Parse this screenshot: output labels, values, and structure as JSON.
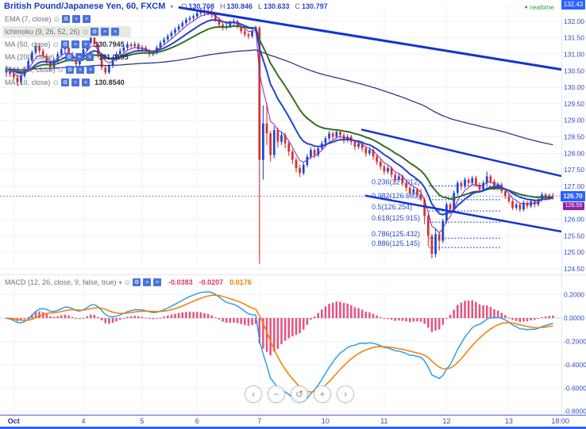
{
  "header": {
    "symbol_title": "British Pound/Japanese Yen, 60, FXCM",
    "ohlc": [
      {
        "k": "O",
        "v": "130.708"
      },
      {
        "k": "H",
        "v": "130.846"
      },
      {
        "k": "L",
        "v": "130.633"
      },
      {
        "k": "C",
        "v": "130.797"
      }
    ],
    "realtime": "realtime"
  },
  "icons": {
    "caret": "▾",
    "eye": "⊙",
    "gear": "⚙",
    "plus": "+",
    "close": "×",
    "dot": "●"
  },
  "legend": {
    "rows": [
      {
        "label": "EMA (7, close)",
        "value": ""
      },
      {
        "label": "Ichimoku (9, 26, 52, 26)",
        "value": ""
      },
      {
        "label": "MA (50, close)",
        "value": "130.7945"
      },
      {
        "label": "MA (200, close)",
        "value": "131.0195"
      },
      {
        "label": "EMA (90, close)",
        "value": ""
      },
      {
        "label": "MA (10, close)",
        "value": "130.8540"
      }
    ]
  },
  "price_axis": {
    "top_badge": "132.43",
    "last_badge": "126.70",
    "sub_badge": "126.59"
  },
  "nav": {
    "buttons": [
      {
        "name": "scroll-left",
        "glyph": "‹"
      },
      {
        "name": "zoom-out",
        "glyph": "−"
      },
      {
        "name": "reset-view",
        "glyph": "↺"
      },
      {
        "name": "zoom-in",
        "glyph": "+"
      },
      {
        "name": "scroll-right",
        "glyph": "›"
      }
    ]
  },
  "chart_data": {
    "type": "candlestick",
    "symbol": "British Pound/Japanese Yen",
    "interval": "60",
    "exchange": "FXCM",
    "time_axis": [
      {
        "label": "Oct",
        "i": 2,
        "bold": true
      },
      {
        "label": "4",
        "i": 21
      },
      {
        "label": "5",
        "i": 37
      },
      {
        "label": "6",
        "i": 52
      },
      {
        "label": "7",
        "i": 69
      },
      {
        "label": "10",
        "i": 87
      },
      {
        "label": "11",
        "i": 103
      },
      {
        "label": "12",
        "i": 120
      },
      {
        "label": "13",
        "i": 137
      },
      {
        "label": "18:00",
        "i": 151,
        "noGrid": true
      }
    ],
    "price_pane": {
      "ylim": [
        124.5,
        132.5
      ],
      "axis_values": [
        132.0,
        131.5,
        131.0,
        130.5,
        130.0,
        129.5,
        129.0,
        128.5,
        128.0,
        127.5,
        127.0,
        126.0,
        125.5,
        125.0,
        124.5
      ],
      "last_price": 126.7,
      "up_color": "#1b4bd2",
      "down_color": "#d8332f",
      "trend_color": "#1334cf",
      "candles": [
        [
          130.45,
          130.65,
          130.32,
          130.55
        ],
        [
          130.55,
          130.62,
          130.31,
          130.4
        ],
        [
          130.4,
          130.48,
          130.22,
          130.3
        ],
        [
          130.3,
          130.38,
          130.05,
          130.15
        ],
        [
          130.15,
          130.42,
          130.08,
          130.35
        ],
        [
          130.35,
          130.62,
          130.28,
          130.55
        ],
        [
          130.55,
          130.88,
          130.48,
          130.8
        ],
        [
          130.8,
          131.12,
          130.72,
          131.05
        ],
        [
          131.05,
          131.35,
          130.98,
          131.25
        ],
        [
          131.25,
          131.32,
          131.02,
          131.1
        ],
        [
          131.1,
          131.18,
          130.88,
          130.95
        ],
        [
          130.95,
          131.02,
          130.68,
          130.75
        ],
        [
          130.75,
          130.82,
          130.52,
          130.6
        ],
        [
          130.6,
          130.88,
          130.54,
          130.8
        ],
        [
          130.8,
          131.08,
          130.74,
          131.0
        ],
        [
          131.0,
          131.22,
          130.94,
          131.15
        ],
        [
          131.15,
          131.28,
          131.05,
          131.2
        ],
        [
          131.2,
          131.26,
          130.92,
          131.0
        ],
        [
          131.0,
          131.07,
          130.78,
          130.85
        ],
        [
          130.85,
          130.92,
          130.62,
          130.7
        ],
        [
          130.7,
          130.98,
          130.64,
          130.9
        ],
        [
          130.9,
          131.22,
          130.84,
          131.15
        ],
        [
          131.15,
          131.42,
          131.08,
          131.35
        ],
        [
          131.35,
          131.58,
          131.28,
          131.5
        ],
        [
          131.5,
          131.56,
          131.22,
          131.3
        ],
        [
          131.3,
          131.36,
          130.88,
          130.95
        ],
        [
          130.95,
          131.02,
          130.52,
          130.6
        ],
        [
          130.6,
          130.68,
          130.38,
          130.45
        ],
        [
          130.45,
          130.72,
          130.4,
          130.65
        ],
        [
          130.65,
          130.92,
          130.58,
          130.85
        ],
        [
          130.85,
          131.08,
          130.78,
          131.0
        ],
        [
          131.0,
          131.18,
          130.94,
          131.1
        ],
        [
          131.1,
          131.28,
          131.04,
          131.2
        ],
        [
          131.2,
          131.38,
          131.12,
          131.3
        ],
        [
          131.3,
          131.36,
          131.16,
          131.25
        ],
        [
          131.25,
          131.38,
          131.18,
          131.3
        ],
        [
          131.3,
          131.35,
          131.08,
          131.15
        ],
        [
          131.15,
          131.28,
          131.08,
          131.2
        ],
        [
          131.2,
          131.26,
          131.02,
          131.1
        ],
        [
          131.1,
          131.16,
          130.92,
          131.0
        ],
        [
          131.0,
          131.12,
          130.94,
          131.05
        ],
        [
          131.05,
          131.27,
          130.99,
          131.2
        ],
        [
          131.2,
          131.42,
          131.14,
          131.35
        ],
        [
          131.35,
          131.52,
          131.28,
          131.45
        ],
        [
          131.45,
          131.62,
          131.38,
          131.55
        ],
        [
          131.55,
          131.72,
          131.48,
          131.65
        ],
        [
          131.65,
          131.82,
          131.58,
          131.75
        ],
        [
          131.75,
          131.92,
          131.68,
          131.85
        ],
        [
          131.85,
          132.02,
          131.78,
          131.95
        ],
        [
          131.95,
          132.12,
          131.88,
          132.05
        ],
        [
          132.05,
          132.17,
          131.98,
          132.1
        ],
        [
          132.1,
          132.22,
          132.02,
          132.15
        ],
        [
          132.15,
          132.32,
          132.08,
          132.25
        ],
        [
          132.25,
          132.4,
          132.18,
          132.3
        ],
        [
          132.3,
          132.45,
          132.16,
          132.25
        ],
        [
          132.25,
          132.44,
          132.18,
          132.3
        ],
        [
          132.3,
          132.38,
          132.1,
          132.2
        ],
        [
          132.2,
          132.26,
          131.98,
          132.05
        ],
        [
          132.05,
          132.12,
          131.82,
          131.9
        ],
        [
          131.9,
          131.97,
          131.72,
          131.8
        ],
        [
          131.8,
          131.92,
          131.74,
          131.85
        ],
        [
          131.85,
          132.02,
          131.79,
          131.95
        ],
        [
          131.95,
          132.08,
          131.88,
          132.0
        ],
        [
          132.0,
          132.05,
          131.77,
          131.85
        ],
        [
          131.85,
          131.91,
          131.62,
          131.7
        ],
        [
          131.7,
          131.77,
          131.52,
          131.6
        ],
        [
          131.6,
          131.66,
          131.46,
          131.55
        ],
        [
          131.55,
          131.77,
          131.49,
          131.7
        ],
        [
          131.7,
          131.87,
          131.64,
          131.8
        ],
        [
          131.8,
          131.85,
          124.65,
          127.8
        ],
        [
          127.8,
          129.45,
          127.2,
          128.9
        ],
        [
          128.9,
          129.52,
          128.25,
          128.6
        ],
        [
          128.6,
          128.68,
          127.75,
          127.95
        ],
        [
          127.95,
          128.82,
          127.85,
          128.7
        ],
        [
          128.7,
          128.78,
          128.18,
          128.35
        ],
        [
          128.35,
          128.65,
          128.25,
          128.55
        ],
        [
          128.55,
          128.62,
          128.15,
          128.3
        ],
        [
          128.3,
          128.38,
          127.92,
          128.05
        ],
        [
          128.05,
          128.12,
          127.68,
          127.8
        ],
        [
          127.8,
          127.88,
          127.42,
          127.55
        ],
        [
          127.55,
          127.65,
          127.28,
          127.4
        ],
        [
          127.4,
          127.72,
          127.34,
          127.65
        ],
        [
          127.65,
          127.98,
          127.58,
          127.9
        ],
        [
          127.9,
          128.18,
          127.82,
          128.1
        ],
        [
          128.1,
          128.16,
          127.85,
          127.95
        ],
        [
          127.95,
          128.22,
          127.88,
          128.15
        ],
        [
          128.15,
          128.38,
          128.08,
          128.3
        ],
        [
          128.3,
          128.52,
          128.22,
          128.45
        ],
        [
          128.45,
          128.68,
          128.38,
          128.6
        ],
        [
          128.6,
          128.66,
          128.4,
          128.5
        ],
        [
          128.5,
          128.72,
          128.44,
          128.65
        ],
        [
          128.65,
          128.71,
          128.45,
          128.55
        ],
        [
          128.55,
          128.61,
          128.3,
          128.4
        ],
        [
          128.4,
          128.58,
          128.33,
          128.5
        ],
        [
          128.5,
          128.56,
          128.25,
          128.35
        ],
        [
          128.35,
          128.42,
          128.1,
          128.2
        ],
        [
          128.2,
          128.38,
          128.13,
          128.3
        ],
        [
          128.3,
          128.36,
          128.05,
          128.15
        ],
        [
          128.15,
          128.22,
          127.9,
          128.0
        ],
        [
          128.0,
          128.17,
          127.93,
          128.1
        ],
        [
          128.1,
          128.16,
          127.8,
          127.9
        ],
        [
          127.9,
          127.97,
          127.65,
          127.75
        ],
        [
          127.75,
          127.82,
          127.5,
          127.6
        ],
        [
          127.6,
          127.67,
          127.35,
          127.45
        ],
        [
          127.45,
          127.63,
          127.38,
          127.55
        ],
        [
          127.55,
          127.61,
          127.25,
          127.35
        ],
        [
          127.35,
          127.42,
          127.1,
          127.2
        ],
        [
          127.2,
          127.38,
          127.13,
          127.3
        ],
        [
          127.3,
          127.36,
          127.0,
          127.1
        ],
        [
          127.1,
          127.17,
          126.85,
          126.95
        ],
        [
          126.95,
          127.02,
          126.72,
          126.8
        ],
        [
          126.8,
          126.98,
          126.74,
          126.9
        ],
        [
          126.9,
          126.96,
          126.65,
          126.75
        ],
        [
          126.75,
          126.92,
          126.55,
          126.6
        ],
        [
          126.6,
          126.66,
          125.85,
          126.1
        ],
        [
          126.1,
          126.16,
          125.18,
          125.5
        ],
        [
          125.5,
          125.56,
          124.82,
          124.95
        ],
        [
          124.95,
          125.72,
          124.85,
          125.55
        ],
        [
          125.55,
          125.62,
          125.05,
          125.35
        ],
        [
          125.35,
          126.02,
          125.28,
          125.95
        ],
        [
          125.95,
          126.52,
          125.88,
          126.45
        ],
        [
          126.45,
          126.51,
          126.18,
          126.3
        ],
        [
          126.3,
          126.87,
          126.24,
          126.8
        ],
        [
          126.8,
          127.17,
          126.73,
          127.1
        ],
        [
          127.1,
          127.16,
          126.88,
          127.0
        ],
        [
          127.0,
          127.27,
          126.93,
          127.2
        ],
        [
          127.2,
          127.26,
          127.0,
          127.1
        ],
        [
          127.1,
          127.32,
          127.03,
          127.25
        ],
        [
          127.25,
          127.31,
          126.98,
          127.05
        ],
        [
          127.05,
          127.12,
          126.82,
          126.9
        ],
        [
          126.9,
          127.17,
          126.84,
          127.1
        ],
        [
          127.1,
          127.45,
          127.03,
          127.3
        ],
        [
          127.3,
          127.36,
          127.08,
          127.15
        ],
        [
          127.15,
          127.21,
          126.88,
          126.95
        ],
        [
          126.95,
          127.12,
          126.88,
          127.05
        ],
        [
          127.05,
          127.11,
          126.78,
          126.85
        ],
        [
          126.85,
          126.92,
          126.62,
          126.7
        ],
        [
          126.7,
          126.77,
          126.48,
          126.55
        ],
        [
          126.55,
          126.61,
          126.28,
          126.35
        ],
        [
          126.35,
          126.52,
          126.28,
          126.45
        ],
        [
          126.45,
          126.5,
          126.22,
          126.3
        ],
        [
          126.3,
          126.57,
          126.24,
          126.5
        ],
        [
          126.5,
          126.56,
          126.32,
          126.4
        ],
        [
          126.4,
          126.62,
          126.34,
          126.55
        ],
        [
          126.55,
          126.6,
          126.36,
          126.45
        ],
        [
          126.45,
          126.67,
          126.39,
          126.6
        ],
        [
          126.6,
          126.82,
          126.54,
          126.75
        ],
        [
          126.75,
          126.8,
          126.56,
          126.65
        ],
        [
          126.65,
          126.78,
          126.58,
          126.72
        ],
        [
          126.72,
          126.8,
          126.6,
          126.7
        ]
      ],
      "overlays": [
        {
          "name": "MA 200",
          "render_period": 130,
          "color": "#2b3a85",
          "width": 1.3
        },
        {
          "name": "EMA 90",
          "render_period": 22,
          "color": "#356e1f",
          "width": 2
        },
        {
          "name": "MA 10",
          "render_period": 12,
          "color": "#1f46c9",
          "width": 2
        },
        {
          "name": "EMA 7",
          "render_period": 5,
          "color": "#8e24aa",
          "width": 1
        }
      ],
      "trend_lines": [
        {
          "x1f": 0.318,
          "p1": 132.42,
          "x2f": 1.0,
          "p2": 130.54,
          "width": 3
        },
        {
          "x1f": 0.6435,
          "p1": 128.72,
          "x2f": 1.0,
          "p2": 127.31,
          "width": 2.5
        },
        {
          "x1f": 0.65,
          "p1": 126.72,
          "x2f": 1.0,
          "p2": 125.63,
          "width": 2.5
        }
      ],
      "fib_levels": [
        {
          "level": "0.236",
          "price": 127.012
        },
        {
          "level": "0.382",
          "price": 126.593
        },
        {
          "level": "0.5",
          "price": 126.254
        },
        {
          "level": "0.618",
          "price": 125.915
        },
        {
          "level": "0.786",
          "price": 125.432
        },
        {
          "level": "0.886",
          "price": 125.145
        }
      ]
    },
    "macd_pane": {
      "label": "MACD (12, 26, close, 9, false, true)",
      "fast": 12,
      "slow": 26,
      "signal_period": 9,
      "ylim": [
        -0.8,
        0.32
      ],
      "display_min": -0.72,
      "axis_values": [
        0.2,
        0.0,
        -0.2,
        -0.4,
        -0.6,
        -0.8
      ],
      "colors": {
        "hist": "#e0356b",
        "macd": "#2b9fe8",
        "signal": "#f57c00"
      },
      "legend_values": {
        "hist": "-0.0383",
        "macd": "-0.0207",
        "signal": "0.0176"
      },
      "legend_value_colors": [
        "#e0356b",
        "#e0356b",
        "#f57c00"
      ]
    }
  }
}
